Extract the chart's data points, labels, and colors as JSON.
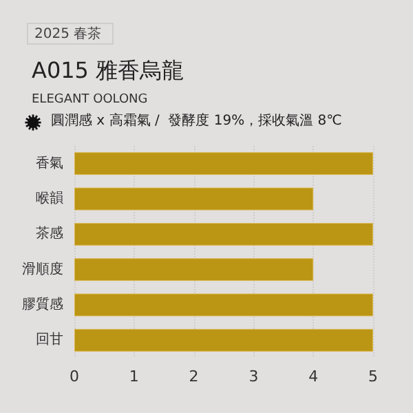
{
  "chart_data": {
    "type": "bar",
    "orientation": "horizontal",
    "title": "A015 雅香烏龍",
    "subtitle": "ELEGANT OOLONG",
    "annotations": [
      "2025 春茶",
      "圓潤感 x 高霜氣 /  發酵度 19%，採收氣溫 8℃"
    ],
    "categories": [
      "香氣",
      "喉韻",
      "茶感",
      "滑順度",
      "膠質感",
      "回甘"
    ],
    "values": [
      5,
      4,
      5,
      4,
      5,
      5
    ],
    "color": "#bb9514",
    "xlim": [
      0,
      5
    ],
    "xticks": [
      0,
      1,
      2,
      3,
      4,
      5
    ],
    "grid": "x"
  }
}
